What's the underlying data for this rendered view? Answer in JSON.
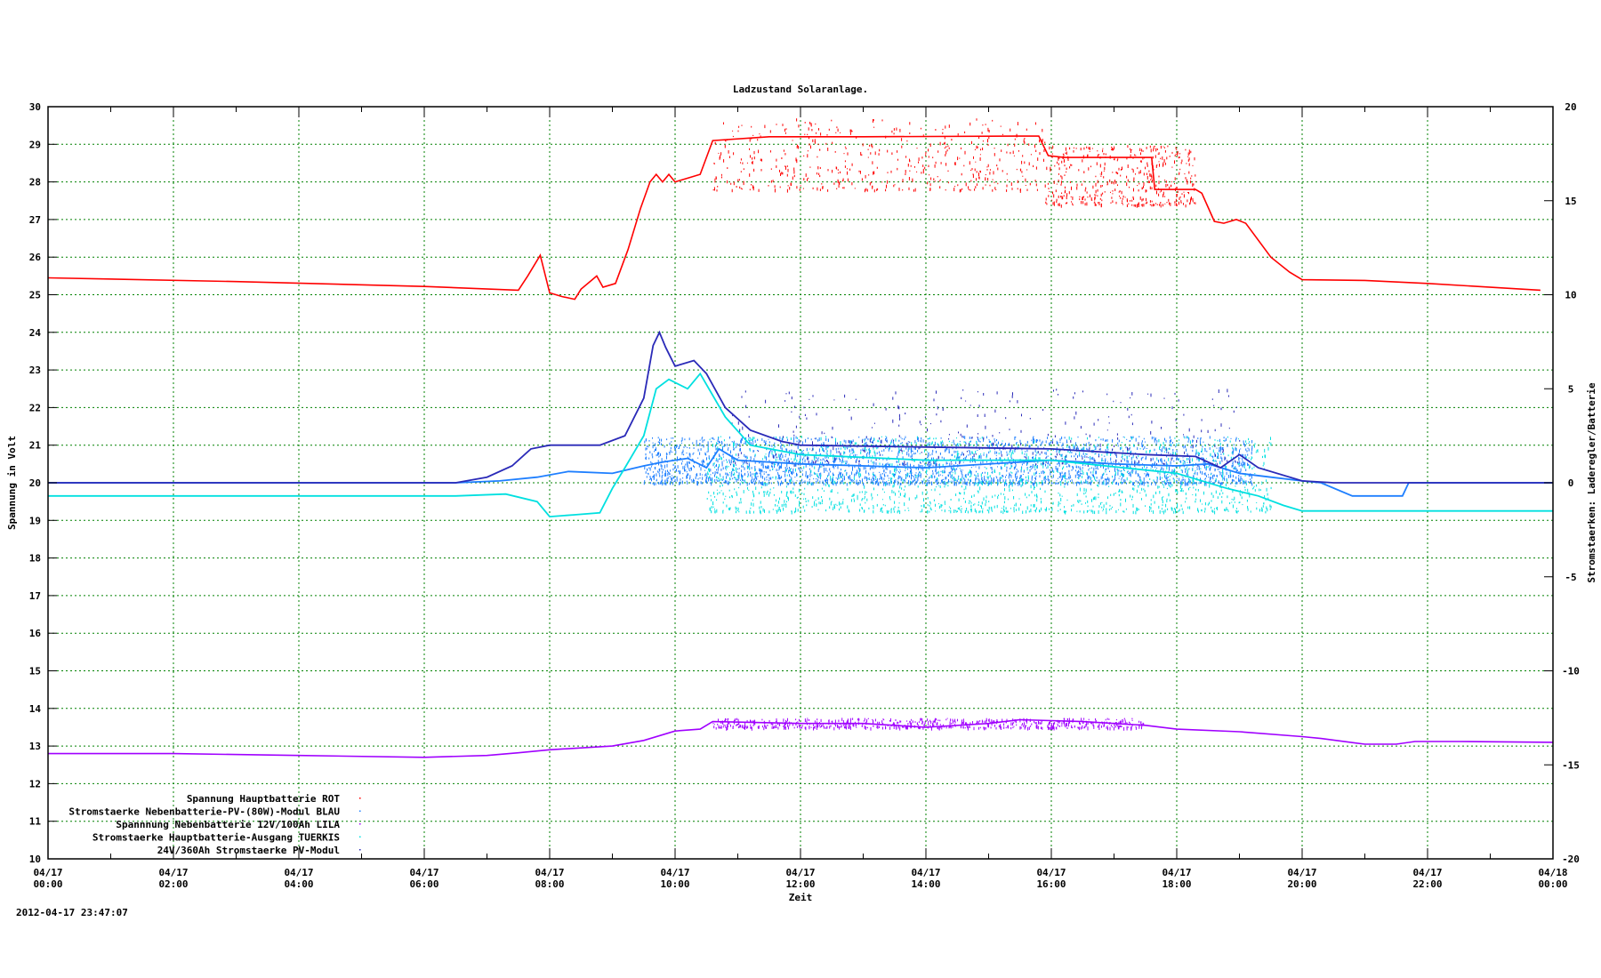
{
  "chart_data": {
    "type": "line",
    "title": "Ladzustand Solaranlage.",
    "xlabel": "Zeit",
    "ylabel": "Spannung in Volt",
    "y2label": "Stromstaerken: Laderegler/Batterie",
    "timestamp": "2012-04-17 23:47:07",
    "xlim_hours": [
      0,
      24
    ],
    "ylim": [
      10,
      30
    ],
    "y2lim": [
      -20,
      20
    ],
    "grid": true,
    "legend_position": "bottom-left",
    "x_ticks": [
      {
        "date": "04/17",
        "time": "00:00",
        "h": 0
      },
      {
        "date": "04/17",
        "time": "02:00",
        "h": 2
      },
      {
        "date": "04/17",
        "time": "04:00",
        "h": 4
      },
      {
        "date": "04/17",
        "time": "06:00",
        "h": 6
      },
      {
        "date": "04/17",
        "time": "08:00",
        "h": 8
      },
      {
        "date": "04/17",
        "time": "10:00",
        "h": 10
      },
      {
        "date": "04/17",
        "time": "12:00",
        "h": 12
      },
      {
        "date": "04/17",
        "time": "14:00",
        "h": 14
      },
      {
        "date": "04/17",
        "time": "16:00",
        "h": 16
      },
      {
        "date": "04/17",
        "time": "18:00",
        "h": 18
      },
      {
        "date": "04/17",
        "time": "20:00",
        "h": 20
      },
      {
        "date": "04/17",
        "time": "22:00",
        "h": 22
      },
      {
        "date": "04/18",
        "time": "00:00",
        "h": 24
      }
    ],
    "y_ticks": [
      "10",
      "11",
      "12",
      "13",
      "14",
      "15",
      "16",
      "17",
      "18",
      "19",
      "20",
      "21",
      "22",
      "23",
      "24",
      "25",
      "26",
      "27",
      "28",
      "29",
      "30"
    ],
    "y2_ticks": [
      "-20",
      "-15",
      "-10",
      "-5",
      "0",
      "5",
      "10",
      "15",
      "20"
    ],
    "series": [
      {
        "name": "Spannung Hauptbatterie ROT",
        "axis": "y",
        "color": "#ff0000",
        "points": [
          [
            0,
            25.45
          ],
          [
            3,
            25.35
          ],
          [
            6,
            25.22
          ],
          [
            7.5,
            25.12
          ],
          [
            7.65,
            25.5
          ],
          [
            7.85,
            26.05
          ],
          [
            8.0,
            25.05
          ],
          [
            8.2,
            24.95
          ],
          [
            8.4,
            24.88
          ],
          [
            8.5,
            25.15
          ],
          [
            8.75,
            25.5
          ],
          [
            8.85,
            25.2
          ],
          [
            9.05,
            25.3
          ],
          [
            9.25,
            26.2
          ],
          [
            9.45,
            27.3
          ],
          [
            9.6,
            28.0
          ],
          [
            9.7,
            28.2
          ],
          [
            9.8,
            28.0
          ],
          [
            9.9,
            28.2
          ],
          [
            10.0,
            28.0
          ],
          [
            10.2,
            28.1
          ],
          [
            10.4,
            28.2
          ],
          [
            10.6,
            29.1
          ],
          [
            11.5,
            29.2
          ],
          [
            13,
            29.2
          ],
          [
            15.8,
            29.22
          ],
          [
            15.95,
            28.7
          ],
          [
            16.2,
            28.65
          ],
          [
            17.6,
            28.65
          ],
          [
            17.65,
            27.8
          ],
          [
            18.3,
            27.8
          ],
          [
            18.4,
            27.7
          ],
          [
            18.6,
            26.95
          ],
          [
            18.75,
            26.9
          ],
          [
            18.95,
            27.0
          ],
          [
            19.1,
            26.9
          ],
          [
            19.5,
            26.0
          ],
          [
            19.8,
            25.6
          ],
          [
            20.0,
            25.4
          ],
          [
            21,
            25.38
          ],
          [
            22,
            25.3
          ],
          [
            23.8,
            25.12
          ]
        ]
      },
      {
        "name": "Stromstaerke Nebenbatterie-PV-(80W)-Modul BLAU",
        "axis": "y2",
        "color": "#1e7fff",
        "points": [
          [
            0,
            0
          ],
          [
            6.5,
            0
          ],
          [
            7.2,
            0.1
          ],
          [
            7.8,
            0.3
          ],
          [
            8.3,
            0.6
          ],
          [
            9.0,
            0.5
          ],
          [
            9.5,
            0.9
          ],
          [
            9.8,
            1.1
          ],
          [
            10.2,
            1.3
          ],
          [
            10.5,
            0.8
          ],
          [
            10.7,
            1.8
          ],
          [
            11,
            1.2
          ],
          [
            12,
            1.0
          ],
          [
            14,
            0.8
          ],
          [
            16,
            1.2
          ],
          [
            17,
            1.0
          ],
          [
            18,
            0.9
          ],
          [
            18.5,
            1.0
          ],
          [
            19,
            0.5
          ],
          [
            19.5,
            0.3
          ],
          [
            20,
            0.1
          ],
          [
            20.3,
            0
          ],
          [
            20.8,
            -0.7
          ],
          [
            21.6,
            -0.7
          ],
          [
            21.7,
            0
          ],
          [
            24,
            0
          ]
        ]
      },
      {
        "name": "Spannnung Nebenbatterie 12V/100Ah LILA",
        "axis": "y",
        "color": "#a000ff",
        "points": [
          [
            0,
            12.8
          ],
          [
            2,
            12.8
          ],
          [
            4,
            12.75
          ],
          [
            6,
            12.7
          ],
          [
            7,
            12.75
          ],
          [
            7.5,
            12.82
          ],
          [
            8,
            12.9
          ],
          [
            9,
            13.0
          ],
          [
            9.5,
            13.15
          ],
          [
            10,
            13.4
          ],
          [
            10.4,
            13.45
          ],
          [
            10.6,
            13.65
          ],
          [
            12,
            13.6
          ],
          [
            13,
            13.6
          ],
          [
            14,
            13.5
          ],
          [
            15,
            13.6
          ],
          [
            15.5,
            13.7
          ],
          [
            16.5,
            13.65
          ],
          [
            17.5,
            13.55
          ],
          [
            18,
            13.45
          ],
          [
            19,
            13.38
          ],
          [
            20,
            13.25
          ],
          [
            20.3,
            13.2
          ],
          [
            21,
            13.05
          ],
          [
            21.5,
            13.05
          ],
          [
            21.8,
            13.12
          ],
          [
            22.5,
            13.12
          ],
          [
            24,
            13.1
          ]
        ]
      },
      {
        "name": "Stromstaerke Hauptbatterie-Ausgang TUERKIS",
        "axis": "y2",
        "color": "#00e0e0",
        "points": [
          [
            0,
            -0.7
          ],
          [
            6.5,
            -0.7
          ],
          [
            7.3,
            -0.6
          ],
          [
            7.8,
            -1.0
          ],
          [
            8.0,
            -1.8
          ],
          [
            8.4,
            -1.7
          ],
          [
            8.8,
            -1.6
          ],
          [
            9.0,
            -0.3
          ],
          [
            9.2,
            0.8
          ],
          [
            9.5,
            2.5
          ],
          [
            9.7,
            5.0
          ],
          [
            9.9,
            5.5
          ],
          [
            10.2,
            5.0
          ],
          [
            10.4,
            5.8
          ],
          [
            10.8,
            3.5
          ],
          [
            11.2,
            2.0
          ],
          [
            12,
            1.5
          ],
          [
            14,
            1.2
          ],
          [
            16,
            1.2
          ],
          [
            18,
            0.5
          ],
          [
            18.8,
            -0.3
          ],
          [
            19.3,
            -0.7
          ],
          [
            19.7,
            -1.2
          ],
          [
            20,
            -1.5
          ],
          [
            21,
            -1.5
          ],
          [
            24,
            -1.5
          ]
        ]
      },
      {
        "name": "24V/360Ah Stromstaerke PV-Modul",
        "axis": "y2",
        "color": "#2a2ab8",
        "points": [
          [
            0,
            0
          ],
          [
            6.5,
            0
          ],
          [
            7.0,
            0.3
          ],
          [
            7.4,
            0.9
          ],
          [
            7.7,
            1.8
          ],
          [
            8.0,
            2.0
          ],
          [
            8.8,
            2.0
          ],
          [
            9.2,
            2.5
          ],
          [
            9.5,
            4.5
          ],
          [
            9.65,
            7.3
          ],
          [
            9.75,
            8.0
          ],
          [
            9.85,
            7.2
          ],
          [
            10.0,
            6.2
          ],
          [
            10.3,
            6.5
          ],
          [
            10.5,
            5.8
          ],
          [
            10.8,
            4.0
          ],
          [
            11.2,
            2.8
          ],
          [
            11.7,
            2.2
          ],
          [
            12,
            2.0
          ],
          [
            14,
            1.9
          ],
          [
            16,
            1.8
          ],
          [
            17.5,
            1.5
          ],
          [
            18.3,
            1.4
          ],
          [
            18.7,
            0.8
          ],
          [
            19,
            1.5
          ],
          [
            19.3,
            0.8
          ],
          [
            20,
            0.1
          ],
          [
            20.5,
            0
          ],
          [
            24,
            0
          ]
        ]
      }
    ],
    "scatter_bands": [
      {
        "series": 0,
        "axis": "y",
        "h": [
          10.6,
          15.9
        ],
        "range": [
          27.8,
          29.7
        ],
        "count": 500
      },
      {
        "series": 0,
        "axis": "y",
        "h": [
          15.9,
          18.3
        ],
        "range": [
          27.4,
          29.0
        ],
        "count": 450
      },
      {
        "series": 1,
        "axis": "y2",
        "h": [
          9.5,
          19.2
        ],
        "range": [
          0,
          2.5
        ],
        "count": 2600
      },
      {
        "series": 3,
        "axis": "y2",
        "h": [
          10.5,
          19.5
        ],
        "range": [
          -1.5,
          2.5
        ],
        "count": 1500
      },
      {
        "series": 4,
        "axis": "y2",
        "h": [
          10.8,
          19.0
        ],
        "range": [
          1.0,
          5.0
        ],
        "count": 350
      },
      {
        "series": 2,
        "axis": "y",
        "h": [
          10.6,
          17.5
        ],
        "range": [
          13.5,
          13.75
        ],
        "count": 700
      }
    ]
  }
}
